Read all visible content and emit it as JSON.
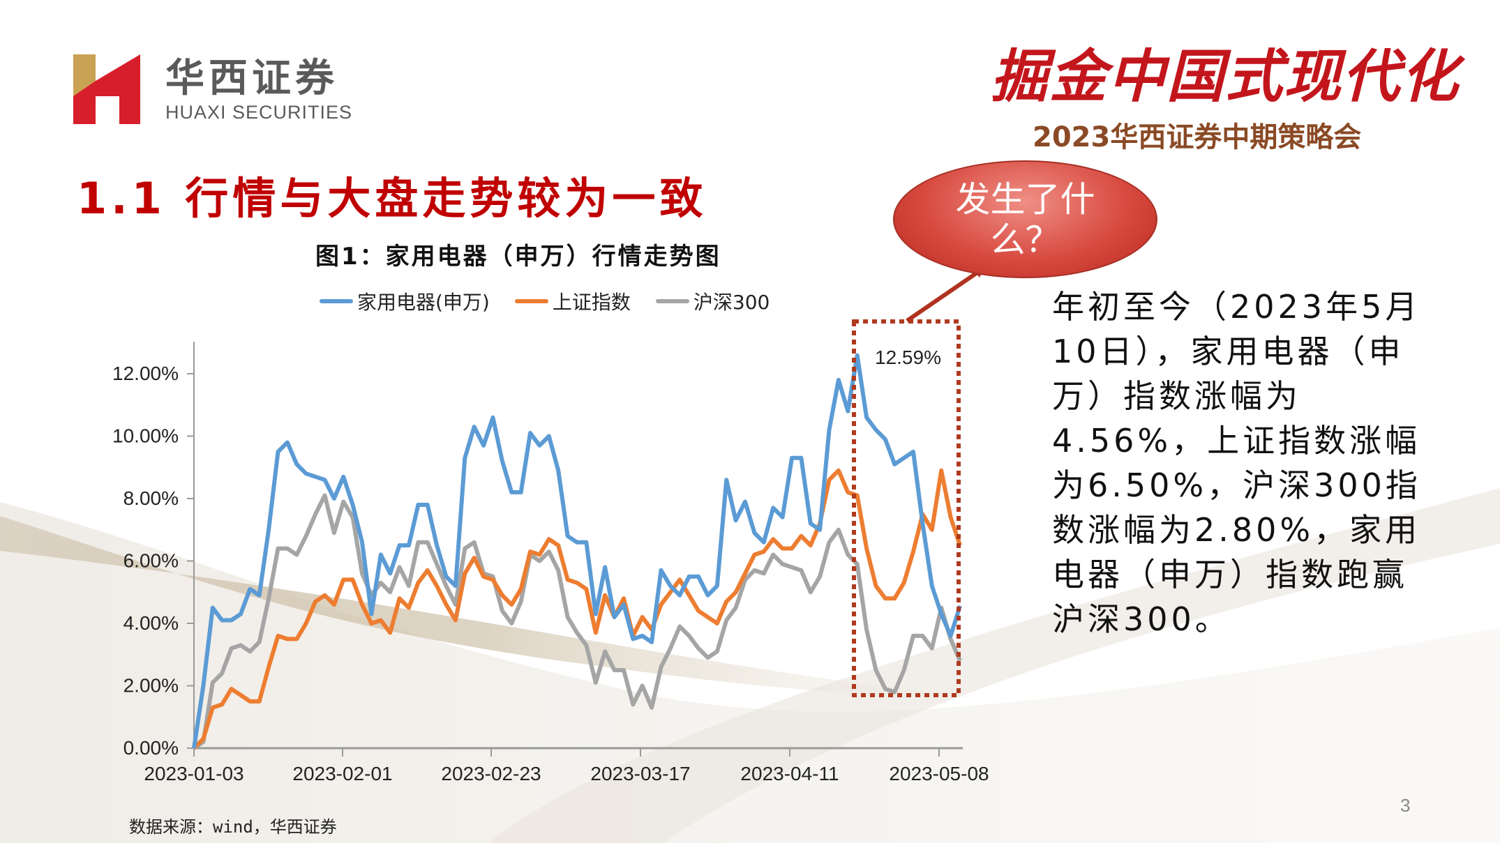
{
  "header": {
    "logo_cn": "华西证券",
    "logo_en": "HUAXI SECURITIES",
    "event_title": "掘金中国式现代化",
    "event_subtitle": "2023华西证券中期策略会"
  },
  "section_title": "1.1 行情与大盘走势较为一致",
  "callout": {
    "text": "发生了什么？"
  },
  "description": "年初至今（2023年5月10日），家用电器（申万）指数涨幅为4.56%，上证指数涨幅为6.50%，沪深300指数涨幅为2.80%，家用电器（申万）指数跑赢沪深300。",
  "source": "数据来源：wind，华西证券",
  "page_number": "3",
  "colors": {
    "appliance": "#5b9bd5",
    "shanghai": "#ed7d31",
    "csi300": "#a5a5a5",
    "title_red": "#c00000",
    "highlight_box": "#b03a1e"
  },
  "chart_data": {
    "type": "line",
    "title": "图1：家用电器（申万）行情走势图",
    "xlabel": "",
    "ylabel": "",
    "ylim": [
      0,
      0.12
    ],
    "yticks": [
      "0.00%",
      "2.00%",
      "4.00%",
      "6.00%",
      "8.00%",
      "10.00%",
      "12.00%"
    ],
    "xticks": [
      "2023-01-03",
      "2023-02-01",
      "2023-02-23",
      "2023-03-17",
      "2023-04-11",
      "2023-05-08"
    ],
    "x_start": "2023-01-03",
    "x_end": "2023-05-10",
    "legend_position": "top",
    "grid": false,
    "annotations": [
      {
        "text": "12.59%",
        "series": "家用电器(申万)",
        "note": "peak, highlighted with dashed box"
      }
    ],
    "series": [
      {
        "name": "家用电器(申万)",
        "values": [
          0,
          2.0,
          4.5,
          4.1,
          4.1,
          4.3,
          5.1,
          4.9,
          7.0,
          9.5,
          9.8,
          9.1,
          8.8,
          8.7,
          8.6,
          8.0,
          8.7,
          7.8,
          6.6,
          4.3,
          6.2,
          5.6,
          6.5,
          6.5,
          7.8,
          7.8,
          6.5,
          5.5,
          5.2,
          9.3,
          10.3,
          9.7,
          10.6,
          9.2,
          8.2,
          8.2,
          10.1,
          9.7,
          10.0,
          8.9,
          6.8,
          6.6,
          6.6,
          4.3,
          5.8,
          4.2,
          4.6,
          3.5,
          3.6,
          3.4,
          5.7,
          5.2,
          4.9,
          5.5,
          5.5,
          4.9,
          5.2,
          8.6,
          7.3,
          7.9,
          6.9,
          6.6,
          7.7,
          7.4,
          9.3,
          9.3,
          7.2,
          7.0,
          10.2,
          11.8,
          10.8,
          12.59,
          10.6,
          10.2,
          9.9,
          9.1,
          9.3,
          9.5,
          7.2,
          5.2,
          4.3,
          3.6,
          4.56
        ]
      },
      {
        "name": "上证指数",
        "values": [
          0,
          0.3,
          1.3,
          1.4,
          1.9,
          1.7,
          1.5,
          1.5,
          2.6,
          3.6,
          3.5,
          3.5,
          4.0,
          4.7,
          4.9,
          4.6,
          5.4,
          5.4,
          4.6,
          4.0,
          4.1,
          3.7,
          4.8,
          4.5,
          5.3,
          5.7,
          5.2,
          4.6,
          4.1,
          5.6,
          6.1,
          5.5,
          5.4,
          4.9,
          4.6,
          5.1,
          6.3,
          6.2,
          6.7,
          6.5,
          5.4,
          5.3,
          5.1,
          3.7,
          4.9,
          4.2,
          4.8,
          3.6,
          4.2,
          3.8,
          4.6,
          5.0,
          5.4,
          4.9,
          4.4,
          4.2,
          4.0,
          4.7,
          5.0,
          5.6,
          6.2,
          6.3,
          6.7,
          6.4,
          6.4,
          6.8,
          6.5,
          7.2,
          8.6,
          8.9,
          8.2,
          8.1,
          6.4,
          5.2,
          4.8,
          4.8,
          5.3,
          6.3,
          7.5,
          7.0,
          8.9,
          7.4,
          6.5
        ]
      },
      {
        "name": "沪深300",
        "values": [
          0,
          0.2,
          2.1,
          2.4,
          3.2,
          3.3,
          3.1,
          3.4,
          4.8,
          6.4,
          6.4,
          6.2,
          6.8,
          7.5,
          8.1,
          6.9,
          7.9,
          7.4,
          5.6,
          4.9,
          5.3,
          5.0,
          5.8,
          5.2,
          6.6,
          6.6,
          5.9,
          5.2,
          4.6,
          6.4,
          6.6,
          5.6,
          5.5,
          4.4,
          4.0,
          4.7,
          6.2,
          6.0,
          6.3,
          5.7,
          4.2,
          3.7,
          3.3,
          2.1,
          3.1,
          2.5,
          2.5,
          1.4,
          2.0,
          1.3,
          2.6,
          3.2,
          3.9,
          3.6,
          3.2,
          2.9,
          3.1,
          4.1,
          4.5,
          5.4,
          5.7,
          5.6,
          6.2,
          5.9,
          5.8,
          5.7,
          5.0,
          5.5,
          6.6,
          7.0,
          6.2,
          5.9,
          3.8,
          2.5,
          1.9,
          1.8,
          2.5,
          3.6,
          3.6,
          3.2,
          4.5,
          3.5,
          2.8
        ]
      }
    ]
  }
}
